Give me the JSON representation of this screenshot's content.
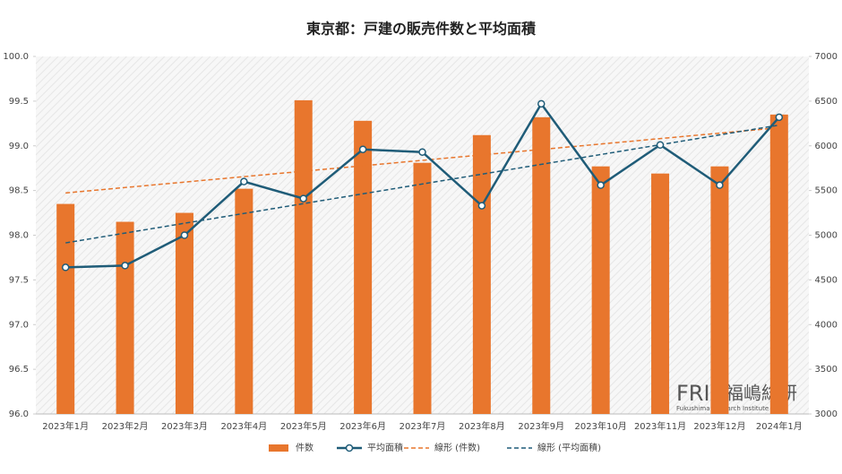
{
  "chart_data": {
    "type": "bar-line",
    "title": "東京都：戸建の販売件数と平均面積",
    "categories": [
      "2023年1月",
      "2023年2月",
      "2023年3月",
      "2023年4月",
      "2023年5月",
      "2023年6月",
      "2023年7月",
      "2023年8月",
      "2023年9月",
      "2023年10月",
      "2023年11月",
      "2023年12月",
      "2024年1月"
    ],
    "series": [
      {
        "name": "件数",
        "type": "bar",
        "axis": "y2",
        "color": "#e8762d",
        "values": [
          5350,
          5150,
          5250,
          5520,
          6510,
          6280,
          5810,
          6120,
          6320,
          5770,
          5690,
          5770,
          6350
        ]
      },
      {
        "name": "平均面積",
        "type": "line",
        "color": "#1f5c78",
        "values": [
          97.64,
          97.66,
          98.0,
          98.6,
          98.41,
          98.96,
          98.93,
          98.33,
          99.47,
          98.56,
          99.01,
          98.56,
          99.32
        ]
      },
      {
        "name": "線形 (件数)",
        "type": "trend",
        "of": 0,
        "color": "#e8762d"
      },
      {
        "name": "線形 (平均面積)",
        "type": "trend",
        "of": 1,
        "color": "#1f5c78"
      }
    ],
    "ylim": [
      96.0,
      100.0
    ],
    "yticks": [
      {
        "value": 96,
        "label": "96.0"
      },
      96.5,
      {
        "value": 97,
        "label": "97.0"
      },
      97.5,
      {
        "value": 98,
        "label": "98.0"
      },
      98.5,
      {
        "value": 99,
        "label": "99.0"
      },
      99.5,
      {
        "value": 100,
        "label": "100.0"
      }
    ],
    "y2lim": [
      3000,
      7000
    ],
    "y2ticks": [
      3000,
      3500,
      4000,
      4500,
      5000,
      5500,
      6000,
      6500,
      7000
    ],
    "legend": "bottom",
    "watermark": {
      "logo": "FRI",
      "name": "福嶋総研",
      "sub": "Fukushima Research Institute"
    }
  }
}
